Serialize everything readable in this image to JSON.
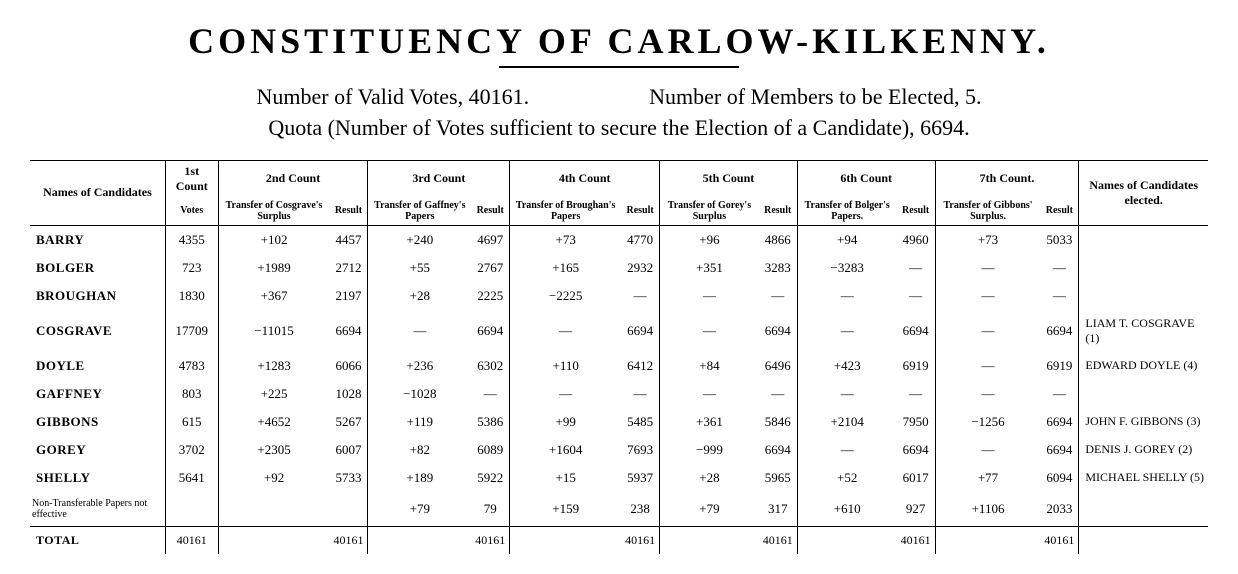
{
  "title": "CONSTITUENCY OF CARLOW-KILKENNY.",
  "summary": {
    "valid_votes_label": "Number of Valid Votes, 40161.",
    "members_label": "Number of Members to be Elected, 5.",
    "quota_label": "Quota (Number of Votes sufficient to secure the Election of a Candidate), 6694."
  },
  "headers": {
    "names_of_candidates": "Names of Candidates",
    "first_count": "1st Count",
    "votes": "Votes",
    "counts": [
      {
        "title": "2nd Count",
        "transfer_label": "Transfer of Cosgrave's Surplus",
        "result_label": "Result"
      },
      {
        "title": "3rd Count",
        "transfer_label": "Transfer of Gaffney's Papers",
        "result_label": "Result"
      },
      {
        "title": "4th Count",
        "transfer_label": "Transfer of Broughan's Papers",
        "result_label": "Result"
      },
      {
        "title": "5th Count",
        "transfer_label": "Transfer of Gorey's Surplus",
        "result_label": "Result"
      },
      {
        "title": "6th Count",
        "transfer_label": "Transfer of Bolger's Papers.",
        "result_label": "Result"
      },
      {
        "title": "7th Count.",
        "transfer_label": "Transfer of Gibbons' Surplus.",
        "result_label": "Result"
      }
    ],
    "elected": "Names of Candidates elected."
  },
  "rows": [
    {
      "name": "BARRY",
      "c1": "4355",
      "t2": "+102",
      "r2": "4457",
      "t3": "+240",
      "r3": "4697",
      "t4": "+73",
      "r4": "4770",
      "t5": "+96",
      "r5": "4866",
      "t6": "+94",
      "r6": "4960",
      "t7": "+73",
      "r7": "5033",
      "elected": ""
    },
    {
      "name": "BOLGER",
      "c1": "723",
      "t2": "+1989",
      "r2": "2712",
      "t3": "+55",
      "r3": "2767",
      "t4": "+165",
      "r4": "2932",
      "t5": "+351",
      "r5": "3283",
      "t6": "−3283",
      "r6": "—",
      "t7": "—",
      "r7": "—",
      "elected": ""
    },
    {
      "name": "BROUGHAN",
      "c1": "1830",
      "t2": "+367",
      "r2": "2197",
      "t3": "+28",
      "r3": "2225",
      "t4": "−2225",
      "r4": "—",
      "t5": "—",
      "r5": "—",
      "t6": "—",
      "r6": "—",
      "t7": "—",
      "r7": "—",
      "elected": ""
    },
    {
      "name": "COSGRAVE",
      "c1": "17709",
      "t2": "−11015",
      "r2": "6694",
      "t3": "—",
      "r3": "6694",
      "t4": "—",
      "r4": "6694",
      "t5": "—",
      "r5": "6694",
      "t6": "—",
      "r6": "6694",
      "t7": "—",
      "r7": "6694",
      "elected": "LIAM T. COSGRAVE (1)"
    },
    {
      "name": "DOYLE",
      "c1": "4783",
      "t2": "+1283",
      "r2": "6066",
      "t3": "+236",
      "r3": "6302",
      "t4": "+110",
      "r4": "6412",
      "t5": "+84",
      "r5": "6496",
      "t6": "+423",
      "r6": "6919",
      "t7": "—",
      "r7": "6919",
      "elected": "EDWARD DOYLE (4)"
    },
    {
      "name": "GAFFNEY",
      "c1": "803",
      "t2": "+225",
      "r2": "1028",
      "t3": "−1028",
      "r3": "—",
      "t4": "—",
      "r4": "—",
      "t5": "—",
      "r5": "—",
      "t6": "—",
      "r6": "—",
      "t7": "—",
      "r7": "—",
      "elected": ""
    },
    {
      "name": "GIBBONS",
      "c1": "615",
      "t2": "+4652",
      "r2": "5267",
      "t3": "+119",
      "r3": "5386",
      "t4": "+99",
      "r4": "5485",
      "t5": "+361",
      "r5": "5846",
      "t6": "+2104",
      "r6": "7950",
      "t7": "−1256",
      "r7": "6694",
      "elected": "JOHN F. GIBBONS (3)"
    },
    {
      "name": "GOREY",
      "c1": "3702",
      "t2": "+2305",
      "r2": "6007",
      "t3": "+82",
      "r3": "6089",
      "t4": "+1604",
      "r4": "7693",
      "t5": "−999",
      "r5": "6694",
      "t6": "—",
      "r6": "6694",
      "t7": "—",
      "r7": "6694",
      "elected": "DENIS J. GOREY (2)"
    },
    {
      "name": "SHELLY",
      "c1": "5641",
      "t2": "+92",
      "r2": "5733",
      "t3": "+189",
      "r3": "5922",
      "t4": "+15",
      "r4": "5937",
      "t5": "+28",
      "r5": "5965",
      "t6": "+52",
      "r6": "6017",
      "t7": "+77",
      "r7": "6094",
      "elected": "MICHAEL SHELLY (5)"
    }
  ],
  "ntp": {
    "label": "Non-Transferable Papers not effective",
    "t3": "+79",
    "r3": "79",
    "t4": "+159",
    "r4": "238",
    "t5": "+79",
    "r5": "317",
    "t6": "+610",
    "r6": "927",
    "t7": "+1106",
    "r7": "2033"
  },
  "total": {
    "label": "TOTAL",
    "c1": "40161",
    "r2": "40161",
    "r3": "40161",
    "r4": "40161",
    "r5": "40161",
    "r6": "40161",
    "r7": "40161"
  }
}
